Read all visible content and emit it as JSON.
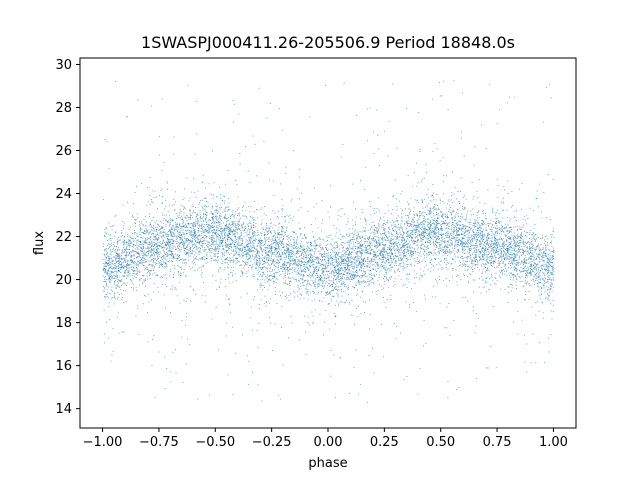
{
  "chart_data": {
    "type": "scatter",
    "title": "1SWASPJ000411.26-205506.9 Period 18848.0s",
    "xlabel": "phase",
    "ylabel": "flux",
    "xlim": [
      -1.1,
      1.1
    ],
    "ylim": [
      13.1,
      30.3
    ],
    "xticks": [
      -1.0,
      -0.75,
      -0.5,
      -0.25,
      0.0,
      0.25,
      0.5,
      0.75,
      1.0
    ],
    "xtick_labels": [
      "−1.00",
      "−0.75",
      "−0.50",
      "−0.25",
      "0.00",
      "0.25",
      "0.50",
      "0.75",
      "1.00"
    ],
    "yticks": [
      14,
      16,
      18,
      20,
      22,
      24,
      26,
      28,
      30
    ],
    "ytick_labels": [
      "14",
      "16",
      "18",
      "20",
      "22",
      "24",
      "26",
      "28",
      "30"
    ],
    "grid": false,
    "legend": "none",
    "point_color": "#1f77b4",
    "series": [
      {
        "description": "folded light curve, two cycles over phase -1 to 1",
        "x_range": [
          -1.0,
          1.0
        ],
        "mean_flux_trend": {
          "x": [
            -1.0,
            -0.75,
            -0.55,
            -0.25,
            0.0,
            0.25,
            0.45,
            0.75,
            1.0
          ],
          "y": [
            20.6,
            21.6,
            22.2,
            21.3,
            20.5,
            21.4,
            22.2,
            21.6,
            20.6
          ]
        },
        "core_scatter_sd": 0.75,
        "outlier_y_range": [
          14.0,
          29.3
        ]
      }
    ]
  }
}
